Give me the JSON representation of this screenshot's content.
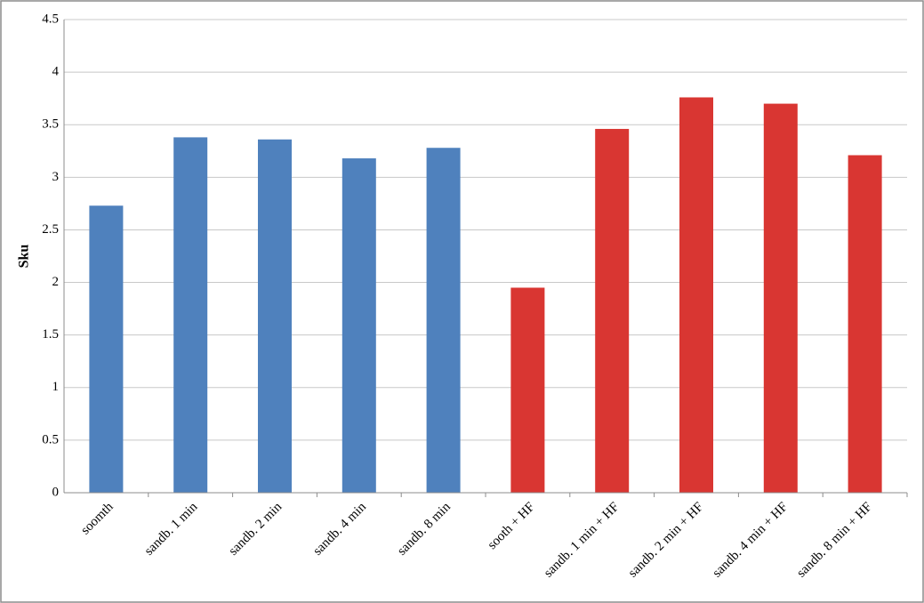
{
  "chart_data": {
    "type": "bar",
    "y_label": "Sku",
    "categories": [
      "soomth",
      "sandb. 1 min",
      "sandb. 2 min",
      "sandb. 4 min",
      "sandb. 8 min",
      "sooth + HF",
      "sandb. 1 min + HF",
      "sandb. 2 min + HF",
      "sandb. 4 min + HF",
      "sandb. 8 min + HF"
    ],
    "values": [
      2.73,
      3.38,
      3.36,
      3.18,
      3.28,
      1.95,
      3.46,
      3.76,
      3.7,
      3.21
    ],
    "colors": [
      "#4f81bd",
      "#4f81bd",
      "#4f81bd",
      "#4f81bd",
      "#4f81bd",
      "#d93632",
      "#d93632",
      "#d93632",
      "#d93632",
      "#d93632"
    ],
    "ylim": [
      0,
      4.5
    ],
    "yticks": [
      0,
      0.5,
      1,
      1.5,
      2,
      2.5,
      3,
      3.5,
      4,
      4.5
    ],
    "grid": true
  }
}
